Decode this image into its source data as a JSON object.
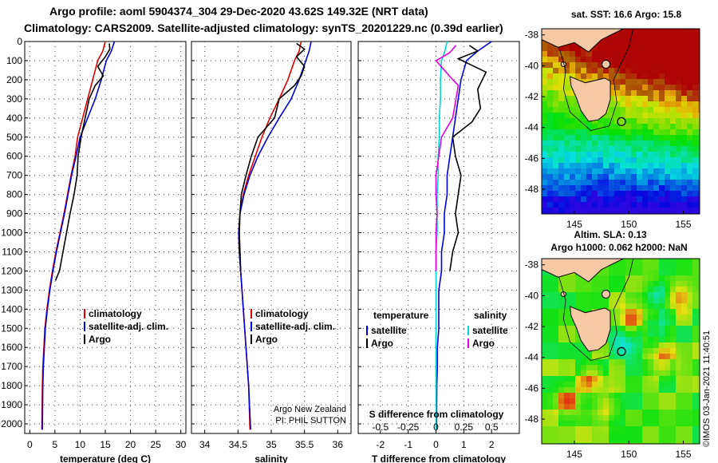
{
  "header": {
    "line1": "Argo profile: aoml 5904374_304 29-Dec-2020 43.62S 149.32E (NRT data)",
    "line2": "Climatology: CARS2009. Satellite-adjusted climatology: synTS_20201229.nc (0.39d earlier)"
  },
  "colors": {
    "climatology": "#e00000",
    "satellite": "#0000dd",
    "argo": "#000000",
    "sat_salinity": "#00d8d8",
    "argo_salinity": "#e000e0"
  },
  "chart_data": [
    {
      "id": "temperature",
      "type": "line",
      "xlabel": "temperature (deg C)",
      "ylabel": "",
      "xlim": [
        -1,
        31
      ],
      "ylim": [
        2050,
        0
      ],
      "x_ticks": [
        "0",
        "5",
        "10",
        "15",
        "20",
        "25",
        "30"
      ],
      "y_ticks": [
        "0",
        "100",
        "200",
        "300",
        "400",
        "500",
        "600",
        "700",
        "800",
        "900",
        "1000",
        "1100",
        "1200",
        "1300",
        "1400",
        "1500",
        "1600",
        "1700",
        "1800",
        "1900",
        "2000"
      ],
      "grid": true,
      "legend": {
        "position": "bottom-right",
        "entries": [
          "climatology",
          "satellite-adj. clim.",
          "Argo"
        ]
      },
      "series": [
        {
          "name": "climatology",
          "color": "#e00000",
          "x": [
            15.0,
            14.5,
            13.5,
            12.5,
            11.5,
            10.5,
            9.5,
            9.0,
            8.2,
            7.5,
            6.8,
            6.0,
            5.2,
            4.5,
            3.9,
            3.4,
            3.0,
            2.8,
            2.6,
            2.5,
            2.4
          ],
          "y": [
            0,
            50,
            100,
            200,
            300,
            400,
            500,
            600,
            700,
            800,
            900,
            1000,
            1100,
            1200,
            1300,
            1400,
            1500,
            1600,
            1700,
            1800,
            2030
          ]
        },
        {
          "name": "satellite-adj. clim.",
          "color": "#0000dd",
          "x": [
            16.8,
            16.2,
            15.2,
            14.2,
            13.0,
            11.5,
            10.0,
            9.2,
            8.3,
            7.6,
            6.9,
            6.1,
            5.3,
            4.6,
            4.0,
            3.5,
            3.1,
            2.9,
            2.7,
            2.6,
            2.5
          ],
          "y": [
            0,
            50,
            100,
            200,
            300,
            400,
            500,
            600,
            700,
            800,
            900,
            1000,
            1100,
            1200,
            1300,
            1400,
            1500,
            1600,
            1700,
            1800,
            2030
          ]
        },
        {
          "name": "Argo",
          "color": "#000000",
          "x": [
            15.8,
            15.9,
            15.0,
            13.5,
            14.6,
            13.0,
            11.8,
            11.0,
            10.2,
            9.6,
            9.4,
            8.8,
            8.0,
            7.3,
            6.6,
            5.9,
            5.1
          ],
          "y": [
            10,
            40,
            80,
            130,
            180,
            230,
            300,
            400,
            500,
            600,
            700,
            800,
            900,
            1000,
            1100,
            1200,
            1250
          ]
        }
      ]
    },
    {
      "id": "salinity",
      "type": "line",
      "xlabel": "salinity",
      "ylabel": "",
      "xlim": [
        33.8,
        36.2
      ],
      "ylim": [
        2050,
        0
      ],
      "x_ticks": [
        "34",
        "34.5",
        "35",
        "35.5",
        "36"
      ],
      "grid": true,
      "legend": {
        "position": "bottom-right",
        "entries": [
          "climatology",
          "satellite-adj. clim.",
          "Argo"
        ]
      },
      "annotation": [
        "Argo New Zealand",
        "PI: PHIL SUTTON"
      ],
      "series": [
        {
          "name": "climatology",
          "color": "#e00000",
          "x": [
            35.45,
            35.42,
            35.35,
            35.25,
            35.12,
            34.98,
            34.86,
            34.76,
            34.66,
            34.58,
            34.53,
            34.51,
            34.52,
            34.54,
            34.56,
            34.58,
            34.6,
            34.62,
            34.64,
            34.66,
            34.68
          ],
          "y": [
            0,
            50,
            100,
            200,
            300,
            400,
            500,
            600,
            700,
            800,
            900,
            1000,
            1100,
            1200,
            1300,
            1400,
            1500,
            1600,
            1700,
            1800,
            2030
          ]
        },
        {
          "name": "satellite-adj. clim.",
          "color": "#0000dd",
          "x": [
            35.6,
            35.57,
            35.52,
            35.42,
            35.3,
            35.12,
            34.95,
            34.8,
            34.68,
            34.59,
            34.53,
            34.51,
            34.52,
            34.54,
            34.56,
            34.58,
            34.6,
            34.62,
            34.64,
            34.66,
            34.69
          ],
          "y": [
            0,
            50,
            100,
            200,
            300,
            400,
            500,
            600,
            700,
            800,
            900,
            1000,
            1100,
            1200,
            1300,
            1400,
            1500,
            1600,
            1700,
            1800,
            2030
          ]
        },
        {
          "name": "Argo",
          "color": "#000000",
          "x": [
            35.38,
            35.5,
            35.38,
            35.5,
            35.45,
            35.35,
            35.12,
            35.05,
            34.8,
            34.7,
            34.62,
            34.55,
            34.53,
            34.52,
            34.53,
            34.54
          ],
          "y": [
            10,
            40,
            80,
            130,
            180,
            230,
            300,
            400,
            500,
            600,
            700,
            800,
            900,
            1000,
            1100,
            1200
          ]
        }
      ]
    },
    {
      "id": "differences",
      "type": "line",
      "xlabel": "T difference from climatology",
      "inner_label": "S difference from climatology",
      "ylabel": "",
      "xlim": [
        -2.8,
        3.0
      ],
      "ylim": [
        2050,
        0
      ],
      "x_ticks": [
        "-2",
        "-1",
        "0",
        "1",
        "2"
      ],
      "top_x_ticks": [
        "-0.5",
        "-0.25",
        "0",
        "0.25",
        "0.5"
      ],
      "grid": true,
      "legend": {
        "position": "bottom",
        "groups": [
          {
            "title": "temperature",
            "entries": [
              "satellite",
              "Argo"
            ]
          },
          {
            "title": "salinity",
            "entries": [
              "satellite",
              "Argo"
            ]
          }
        ]
      },
      "series": [
        {
          "name": "satellite",
          "quantity": "temperature",
          "color": "#0000dd",
          "x": [
            2.0,
            1.5,
            1.1,
            0.9,
            0.8,
            0.7,
            0.6,
            0.5,
            0.4,
            0.4,
            0.3,
            0.3,
            0.2,
            0.2,
            0.1,
            0.1,
            0.1,
            0.05,
            0.05,
            0.03,
            0.02
          ],
          "y": [
            0,
            50,
            100,
            200,
            300,
            400,
            500,
            600,
            700,
            800,
            900,
            1000,
            1100,
            1200,
            1300,
            1400,
            1500,
            1600,
            1700,
            1800,
            2030
          ]
        },
        {
          "name": "Argo",
          "quantity": "temperature",
          "color": "#000000",
          "x": [
            1.2,
            1.5,
            0.8,
            1.8,
            1.5,
            1.6,
            1.3,
            0.6,
            0.7,
            0.9,
            0.8,
            0.7,
            0.8,
            0.6,
            0.5
          ],
          "y": [
            20,
            50,
            90,
            160,
            250,
            350,
            420,
            500,
            600,
            700,
            800,
            900,
            1000,
            1100,
            1200
          ]
        },
        {
          "name": "satellite",
          "quantity": "salinity",
          "color": "#00d8d8",
          "x": [
            0.1,
            0.08,
            0.05,
            0.04,
            0.04,
            0.03,
            0.03,
            0.02,
            0.02,
            0.01,
            0.01,
            0.01,
            0.0,
            0.0,
            0.0,
            0.0,
            0.0,
            0.0,
            0.0,
            0.0,
            0.0
          ],
          "y": [
            0,
            50,
            100,
            200,
            300,
            400,
            500,
            600,
            700,
            800,
            900,
            1000,
            1100,
            1200,
            1300,
            1400,
            1500,
            1600,
            1700,
            1800,
            2030
          ]
        },
        {
          "name": "Argo",
          "quantity": "salinity",
          "color": "#e000e0",
          "x": [
            0.18,
            0.12,
            0.0,
            0.12,
            0.2,
            0.18,
            0.15,
            0.05,
            0.0,
            0.0,
            0.01,
            0.0,
            0.0,
            0.0
          ],
          "y": [
            20,
            60,
            100,
            180,
            230,
            300,
            400,
            500,
            700,
            800,
            900,
            1000,
            1100,
            1200
          ]
        }
      ]
    },
    {
      "id": "sst-map",
      "type": "heatmap",
      "title": "sat. SST: 16.6 Argo: 15.8",
      "x_ticks": [
        "145",
        "150",
        "155"
      ],
      "y_ticks": [
        "-38",
        "-40",
        "-42",
        "-44",
        "-46",
        "-48"
      ],
      "xlim": [
        142,
        156.5
      ],
      "ylim": [
        -49.6,
        -37.6
      ]
    },
    {
      "id": "sla-map",
      "type": "heatmap",
      "title": "Altim. SLA: 0.13",
      "subtitle": "Argo h1000: 0.062 h2000: NaN",
      "x_ticks": [
        "145",
        "150",
        "155"
      ],
      "y_ticks": [
        "-38",
        "-40",
        "-42",
        "-44",
        "-46",
        "-48"
      ],
      "xlim": [
        142,
        156.5
      ],
      "ylim": [
        -49.6,
        -37.6
      ]
    }
  ],
  "credit": "©IMOS 03-Jan-2021 11:40:51"
}
